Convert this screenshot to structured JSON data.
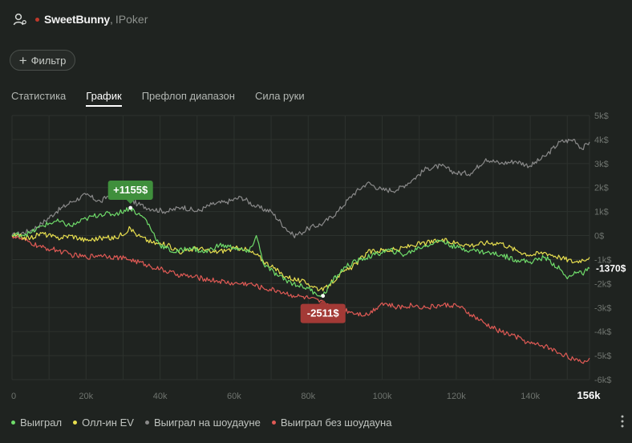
{
  "header": {
    "player_name": "SweetBunny",
    "separator": ",",
    "room": "IPoker",
    "status_color": "#c0392b"
  },
  "filter": {
    "label": "Фильтр",
    "icon": "plus-icon"
  },
  "tabs": [
    {
      "label": "Статистика",
      "active": false
    },
    {
      "label": "График",
      "active": true
    },
    {
      "label": "Префлоп диапазон",
      "active": false
    },
    {
      "label": "Сила руки",
      "active": false
    }
  ],
  "chart_data": {
    "type": "line",
    "x_unit": "hands",
    "xlim": [
      0,
      156000
    ],
    "ylim": [
      -6000,
      5000
    ],
    "x_ticks": [
      {
        "value": 0,
        "label": "0"
      },
      {
        "value": 20000,
        "label": "20k"
      },
      {
        "value": 40000,
        "label": "40k"
      },
      {
        "value": 60000,
        "label": "60k"
      },
      {
        "value": 80000,
        "label": "80k"
      },
      {
        "value": 100000,
        "label": "100k"
      },
      {
        "value": 120000,
        "label": "120k"
      },
      {
        "value": 140000,
        "label": "140k"
      }
    ],
    "x_end_label": "156k",
    "y_ticks": [
      {
        "value": 5000,
        "label": "5k$"
      },
      {
        "value": 4000,
        "label": "4k$"
      },
      {
        "value": 3000,
        "label": "3k$"
      },
      {
        "value": 2000,
        "label": "2k$"
      },
      {
        "value": 1000,
        "label": "1k$"
      },
      {
        "value": 0,
        "label": "0$"
      },
      {
        "value": -1000,
        "label": "-1k$"
      },
      {
        "value": -2000,
        "label": "-2k$"
      },
      {
        "value": -3000,
        "label": "-3k$"
      },
      {
        "value": -4000,
        "label": "-4k$"
      },
      {
        "value": -5000,
        "label": "-5k$"
      },
      {
        "value": -6000,
        "label": "-6k$"
      }
    ],
    "series": [
      {
        "name": "Выиграл на шоудауне",
        "color": "#8a8a8a",
        "x": [
          0,
          5,
          8,
          12,
          16,
          20,
          24,
          27,
          31,
          34,
          38,
          42,
          46,
          50,
          54,
          58,
          62,
          66,
          70,
          74,
          76,
          78,
          80,
          84,
          88,
          92,
          96,
          100,
          104,
          108,
          112,
          116,
          120,
          124,
          128,
          132,
          136,
          140,
          144,
          148,
          152,
          154,
          156
        ],
        "y": [
          0,
          200,
          500,
          1000,
          1400,
          1700,
          1400,
          1800,
          1600,
          1300,
          1100,
          1000,
          1200,
          1000,
          1300,
          1400,
          1600,
          1200,
          1000,
          300,
          0,
          100,
          300,
          500,
          1000,
          1700,
          2200,
          1900,
          1900,
          2300,
          2800,
          2900,
          2600,
          2600,
          3200,
          3000,
          3100,
          2900,
          3300,
          3900,
          4000,
          3600,
          3900
        ]
      },
      {
        "name": "Выиграл",
        "color": "#6fdc6a",
        "x": [
          0,
          5,
          8,
          12,
          16,
          20,
          24,
          28,
          32,
          34,
          36,
          40,
          44,
          48,
          52,
          56,
          60,
          64,
          66,
          68,
          72,
          76,
          80,
          82,
          84,
          86,
          90,
          94,
          98,
          102,
          106,
          110,
          114,
          116,
          120,
          124,
          128,
          132,
          136,
          140,
          144,
          148,
          150,
          152,
          154,
          156
        ],
        "y": [
          0,
          100,
          400,
          600,
          400,
          700,
          900,
          900,
          1155,
          900,
          700,
          -400,
          -700,
          -500,
          -700,
          -400,
          -500,
          -700,
          0,
          -1200,
          -1700,
          -2000,
          -2200,
          -2400,
          -2511,
          -2000,
          -1300,
          -1000,
          -800,
          -600,
          -800,
          -500,
          -300,
          -200,
          -500,
          -600,
          -700,
          -800,
          -1000,
          -1100,
          -900,
          -1400,
          -1800,
          -1500,
          -1600,
          -1370
        ]
      },
      {
        "name": "Олл-ин EV",
        "color": "#e8df4f",
        "x": [
          0,
          5,
          8,
          12,
          16,
          20,
          24,
          28,
          32,
          34,
          38,
          42,
          46,
          50,
          54,
          58,
          62,
          66,
          70,
          74,
          78,
          80,
          84,
          88,
          92,
          96,
          100,
          104,
          108,
          112,
          116,
          120,
          124,
          128,
          132,
          136,
          140,
          144,
          148,
          152,
          156
        ],
        "y": [
          0,
          -100,
          100,
          -100,
          0,
          -200,
          -100,
          -100,
          300,
          0,
          -300,
          -400,
          -700,
          -500,
          -700,
          -600,
          -500,
          -800,
          -1300,
          -1700,
          -1900,
          -2000,
          -2300,
          -1700,
          -1300,
          -700,
          -600,
          -600,
          -400,
          -300,
          -200,
          -300,
          -400,
          -300,
          -300,
          -600,
          -800,
          -700,
          -900,
          -1100,
          -900
        ]
      },
      {
        "name": "Выиграл без шоудауна",
        "color": "#e05a55",
        "x": [
          0,
          5,
          8,
          12,
          16,
          20,
          24,
          28,
          32,
          36,
          40,
          44,
          48,
          52,
          56,
          60,
          64,
          68,
          72,
          76,
          80,
          84,
          88,
          92,
          96,
          100,
          104,
          108,
          112,
          116,
          120,
          124,
          128,
          132,
          136,
          140,
          144,
          148,
          150,
          152,
          154,
          156
        ],
        "y": [
          0,
          -300,
          -500,
          -600,
          -800,
          -900,
          -800,
          -900,
          -1000,
          -1200,
          -1400,
          -1600,
          -1700,
          -1800,
          -1900,
          -2000,
          -2000,
          -2200,
          -2300,
          -2500,
          -2600,
          -2800,
          -3000,
          -3200,
          -3300,
          -2800,
          -3000,
          -2900,
          -3000,
          -2900,
          -2900,
          -3300,
          -3700,
          -4000,
          -4200,
          -4500,
          -4600,
          -4900,
          -5000,
          -5200,
          -5300,
          -5100
        ]
      }
    ],
    "annotations": [
      {
        "label": "+1155$",
        "x": 32,
        "y": 1155,
        "color": "#3f8f3c",
        "placement": "above"
      },
      {
        "label": "-2511$",
        "x": 84,
        "y": -2511,
        "color": "#a33a36",
        "placement": "below"
      }
    ],
    "end_value_label": "-1370$",
    "end_value_y": -1370
  },
  "legend": [
    {
      "label": "Выиграл",
      "color": "#6fdc6a"
    },
    {
      "label": "Олл-ин EV",
      "color": "#e8df4f"
    },
    {
      "label": "Выиграл на шоудауне",
      "color": "#8a8a8a"
    },
    {
      "label": "Выиграл без шоудауна",
      "color": "#e05a55"
    }
  ],
  "colors": {
    "background": "#1f2320",
    "grid": "#2d322e",
    "axis_text": "#6e736e"
  }
}
